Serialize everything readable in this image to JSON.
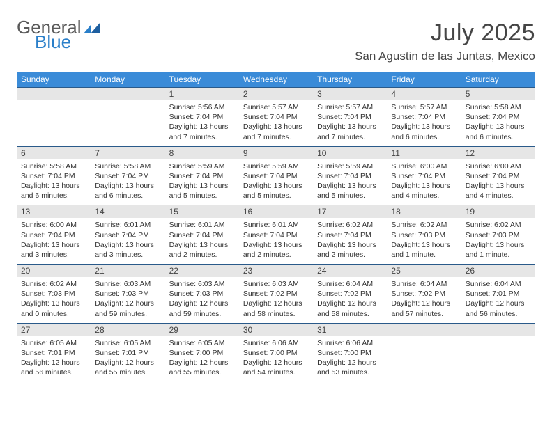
{
  "brand": {
    "part1": "General",
    "part2": "Blue"
  },
  "title": "July 2025",
  "location": "San Agustin de las Juntas, Mexico",
  "colors": {
    "header_bg": "#3a8bd8",
    "header_text": "#ffffff",
    "daynum_bg": "#e6e6e6",
    "border": "#2a5a8a",
    "brand_gray": "#5a5a5a",
    "brand_blue": "#2a7fc9"
  },
  "weekdays": [
    "Sunday",
    "Monday",
    "Tuesday",
    "Wednesday",
    "Thursday",
    "Friday",
    "Saturday"
  ],
  "weeks": [
    [
      {
        "n": "",
        "sr": "",
        "ss": "",
        "dl": ""
      },
      {
        "n": "",
        "sr": "",
        "ss": "",
        "dl": ""
      },
      {
        "n": "1",
        "sr": "Sunrise: 5:56 AM",
        "ss": "Sunset: 7:04 PM",
        "dl": "Daylight: 13 hours and 7 minutes."
      },
      {
        "n": "2",
        "sr": "Sunrise: 5:57 AM",
        "ss": "Sunset: 7:04 PM",
        "dl": "Daylight: 13 hours and 7 minutes."
      },
      {
        "n": "3",
        "sr": "Sunrise: 5:57 AM",
        "ss": "Sunset: 7:04 PM",
        "dl": "Daylight: 13 hours and 7 minutes."
      },
      {
        "n": "4",
        "sr": "Sunrise: 5:57 AM",
        "ss": "Sunset: 7:04 PM",
        "dl": "Daylight: 13 hours and 6 minutes."
      },
      {
        "n": "5",
        "sr": "Sunrise: 5:58 AM",
        "ss": "Sunset: 7:04 PM",
        "dl": "Daylight: 13 hours and 6 minutes."
      }
    ],
    [
      {
        "n": "6",
        "sr": "Sunrise: 5:58 AM",
        "ss": "Sunset: 7:04 PM",
        "dl": "Daylight: 13 hours and 6 minutes."
      },
      {
        "n": "7",
        "sr": "Sunrise: 5:58 AM",
        "ss": "Sunset: 7:04 PM",
        "dl": "Daylight: 13 hours and 6 minutes."
      },
      {
        "n": "8",
        "sr": "Sunrise: 5:59 AM",
        "ss": "Sunset: 7:04 PM",
        "dl": "Daylight: 13 hours and 5 minutes."
      },
      {
        "n": "9",
        "sr": "Sunrise: 5:59 AM",
        "ss": "Sunset: 7:04 PM",
        "dl": "Daylight: 13 hours and 5 minutes."
      },
      {
        "n": "10",
        "sr": "Sunrise: 5:59 AM",
        "ss": "Sunset: 7:04 PM",
        "dl": "Daylight: 13 hours and 5 minutes."
      },
      {
        "n": "11",
        "sr": "Sunrise: 6:00 AM",
        "ss": "Sunset: 7:04 PM",
        "dl": "Daylight: 13 hours and 4 minutes."
      },
      {
        "n": "12",
        "sr": "Sunrise: 6:00 AM",
        "ss": "Sunset: 7:04 PM",
        "dl": "Daylight: 13 hours and 4 minutes."
      }
    ],
    [
      {
        "n": "13",
        "sr": "Sunrise: 6:00 AM",
        "ss": "Sunset: 7:04 PM",
        "dl": "Daylight: 13 hours and 3 minutes."
      },
      {
        "n": "14",
        "sr": "Sunrise: 6:01 AM",
        "ss": "Sunset: 7:04 PM",
        "dl": "Daylight: 13 hours and 3 minutes."
      },
      {
        "n": "15",
        "sr": "Sunrise: 6:01 AM",
        "ss": "Sunset: 7:04 PM",
        "dl": "Daylight: 13 hours and 2 minutes."
      },
      {
        "n": "16",
        "sr": "Sunrise: 6:01 AM",
        "ss": "Sunset: 7:04 PM",
        "dl": "Daylight: 13 hours and 2 minutes."
      },
      {
        "n": "17",
        "sr": "Sunrise: 6:02 AM",
        "ss": "Sunset: 7:04 PM",
        "dl": "Daylight: 13 hours and 2 minutes."
      },
      {
        "n": "18",
        "sr": "Sunrise: 6:02 AM",
        "ss": "Sunset: 7:03 PM",
        "dl": "Daylight: 13 hours and 1 minute."
      },
      {
        "n": "19",
        "sr": "Sunrise: 6:02 AM",
        "ss": "Sunset: 7:03 PM",
        "dl": "Daylight: 13 hours and 1 minute."
      }
    ],
    [
      {
        "n": "20",
        "sr": "Sunrise: 6:02 AM",
        "ss": "Sunset: 7:03 PM",
        "dl": "Daylight: 13 hours and 0 minutes."
      },
      {
        "n": "21",
        "sr": "Sunrise: 6:03 AM",
        "ss": "Sunset: 7:03 PM",
        "dl": "Daylight: 12 hours and 59 minutes."
      },
      {
        "n": "22",
        "sr": "Sunrise: 6:03 AM",
        "ss": "Sunset: 7:03 PM",
        "dl": "Daylight: 12 hours and 59 minutes."
      },
      {
        "n": "23",
        "sr": "Sunrise: 6:03 AM",
        "ss": "Sunset: 7:02 PM",
        "dl": "Daylight: 12 hours and 58 minutes."
      },
      {
        "n": "24",
        "sr": "Sunrise: 6:04 AM",
        "ss": "Sunset: 7:02 PM",
        "dl": "Daylight: 12 hours and 58 minutes."
      },
      {
        "n": "25",
        "sr": "Sunrise: 6:04 AM",
        "ss": "Sunset: 7:02 PM",
        "dl": "Daylight: 12 hours and 57 minutes."
      },
      {
        "n": "26",
        "sr": "Sunrise: 6:04 AM",
        "ss": "Sunset: 7:01 PM",
        "dl": "Daylight: 12 hours and 56 minutes."
      }
    ],
    [
      {
        "n": "27",
        "sr": "Sunrise: 6:05 AM",
        "ss": "Sunset: 7:01 PM",
        "dl": "Daylight: 12 hours and 56 minutes."
      },
      {
        "n": "28",
        "sr": "Sunrise: 6:05 AM",
        "ss": "Sunset: 7:01 PM",
        "dl": "Daylight: 12 hours and 55 minutes."
      },
      {
        "n": "29",
        "sr": "Sunrise: 6:05 AM",
        "ss": "Sunset: 7:00 PM",
        "dl": "Daylight: 12 hours and 55 minutes."
      },
      {
        "n": "30",
        "sr": "Sunrise: 6:06 AM",
        "ss": "Sunset: 7:00 PM",
        "dl": "Daylight: 12 hours and 54 minutes."
      },
      {
        "n": "31",
        "sr": "Sunrise: 6:06 AM",
        "ss": "Sunset: 7:00 PM",
        "dl": "Daylight: 12 hours and 53 minutes."
      },
      {
        "n": "",
        "sr": "",
        "ss": "",
        "dl": ""
      },
      {
        "n": "",
        "sr": "",
        "ss": "",
        "dl": ""
      }
    ]
  ]
}
